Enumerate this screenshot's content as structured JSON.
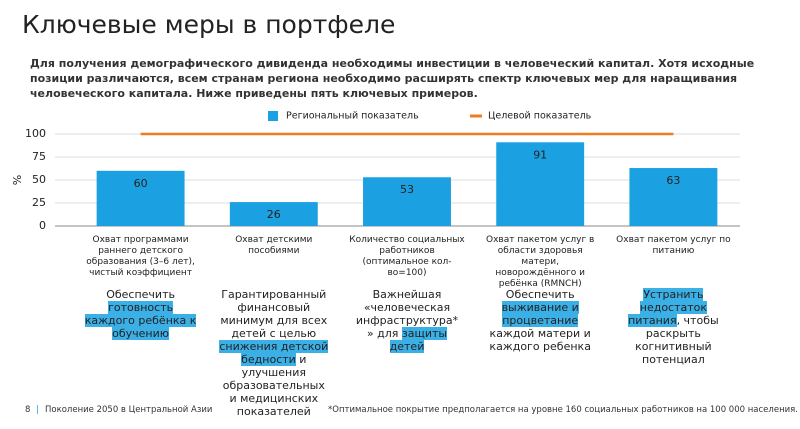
{
  "title": "Ключевые меры в портфеле",
  "intro": "Для получения демографического дивиденда необходимы инвестиции в человеческий капитал. Хотя исходные позиции различаются, всем странам региона необходимо расширять спектр ключевых мер для наращивания человеческого капитала. Ниже приведены пять ключевых примеров.",
  "chart_data": {
    "type": "bar",
    "categories": [
      "Охват программами раннего детского образования (3–6 лет), чистый коэффициент",
      "Охват детскими пособиями",
      "Количество социальных работников (оптимальное кол-во=100)",
      "Охват пакетом услуг в области здоровья матери, новорождённого и ребёнка (RMNCH)",
      "Охват пакетом услуг по питанию"
    ],
    "series": [
      {
        "name": "Региональный показатель",
        "color": "#1ba1e2",
        "values": [
          60,
          26,
          53,
          91,
          63
        ]
      },
      {
        "name": "Целевой показатель",
        "color": "#f07c22",
        "type": "line",
        "values": [
          100,
          100,
          100,
          100,
          100
        ]
      }
    ],
    "y_label": "%",
    "ylim": [
      0,
      100
    ],
    "yticks": [
      0,
      25,
      50,
      75,
      100
    ],
    "grid": true,
    "legend": "top"
  },
  "captions": [
    [
      {
        "text": "Обеспечить "
      },
      {
        "text": "готовность каждого ребёнка к обучению",
        "highlight": true
      }
    ],
    [
      {
        "text": "Гарантированный финансовый минимум для всех детей с целью "
      },
      {
        "text": "снижения детской бедности",
        "highlight": true
      },
      {
        "text": " и улучшения образовательных и медицинских показателей"
      }
    ],
    [
      {
        "text": "Важнейшая «человеческая инфраструктура* » для "
      },
      {
        "text": "защиты детей",
        "highlight": true
      }
    ],
    [
      {
        "text": "Обеспечить "
      },
      {
        "text": "выживание и процветание",
        "highlight": true
      },
      {
        "text": " каждой матери и каждого ребенка"
      }
    ],
    [
      {
        "text": "Устранить недостаток питания",
        "highlight": true
      },
      {
        "text": ", чтобы раскрыть когнитивный потенциал"
      }
    ]
  ],
  "footer": {
    "page": "8",
    "publication": "Поколение 2050 в Центральной Азии",
    "note": "*Оптимальное покрытие предполагается на уровне 160 социальных работников на 100 000 населения."
  }
}
